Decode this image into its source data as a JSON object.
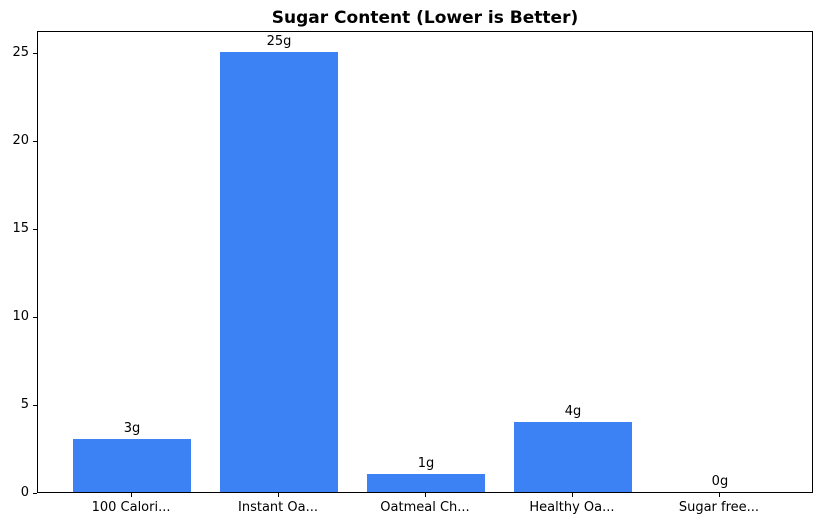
{
  "chart_data": {
    "type": "bar",
    "title": "Sugar Content (Lower is Better)",
    "categories": [
      "100 Calori...",
      "Instant Oa...",
      "Oatmeal Ch...",
      "Healthy Oa...",
      "Sugar free..."
    ],
    "values": [
      3,
      25,
      1,
      4,
      0
    ],
    "value_labels": [
      "3g",
      "25g",
      "1g",
      "4g",
      "0g"
    ],
    "xlabel": "",
    "ylabel": "",
    "yticks": [
      0,
      5,
      10,
      15,
      20,
      25
    ],
    "ylim": [
      0,
      26.25
    ],
    "grid": false,
    "legend": "none",
    "bar_color": "#3d82f4",
    "text_color": "#000000",
    "spine_color": "#000000",
    "background_color": "#ffffff"
  }
}
